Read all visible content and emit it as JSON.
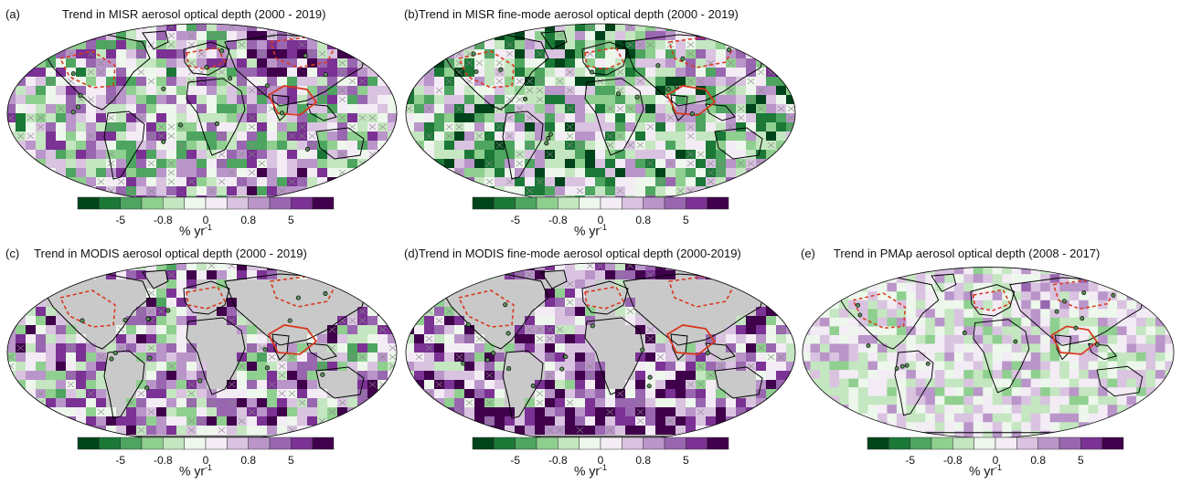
{
  "panels": [
    {
      "id": "a",
      "label": "(a)",
      "title": "Trend in MISR aerosol optical depth (2000 - 2019)",
      "gray_land": false,
      "bias": 0.05,
      "seed": 11
    },
    {
      "id": "b",
      "label": "(b)",
      "title": "Trend in MISR fine-mode aerosol optical depth (2000 - 2019)",
      "gray_land": false,
      "bias": -0.25,
      "seed": 23
    },
    {
      "id": "c",
      "label": "(c)",
      "title": "Trend in MODIS aerosol optical depth (2000 - 2019)",
      "gray_land": true,
      "bias": 0.2,
      "seed": 37
    },
    {
      "id": "d",
      "label": "(d)",
      "title": "Trend in MODIS fine-mode aerosol optical depth (2000-2019)",
      "gray_land": true,
      "bias": 0.35,
      "seed": 51
    },
    {
      "id": "e",
      "label": "(e)",
      "title": "Trend in PMAp aerosol optical depth (2008 - 2017)",
      "gray_land": false,
      "bias": 0.02,
      "seed": 67
    }
  ],
  "colorbar": {
    "unit_base": "% yr",
    "unit_exp": "-1",
    "tick_labels": [
      "-5",
      "-0.8",
      "0",
      "0.8",
      "5"
    ],
    "colors": [
      "#00441b",
      "#1b7837",
      "#4da560",
      "#8fcf8f",
      "#c4e6c0",
      "#eef7ec",
      "#f3ecf5",
      "#d9c3e0",
      "#b995c9",
      "#9966b0",
      "#7b3294",
      "#40004b"
    ]
  },
  "colors": {
    "land_gray": "#c9c9c9",
    "coast": "#000000",
    "region_outline": "#d9381e"
  }
}
